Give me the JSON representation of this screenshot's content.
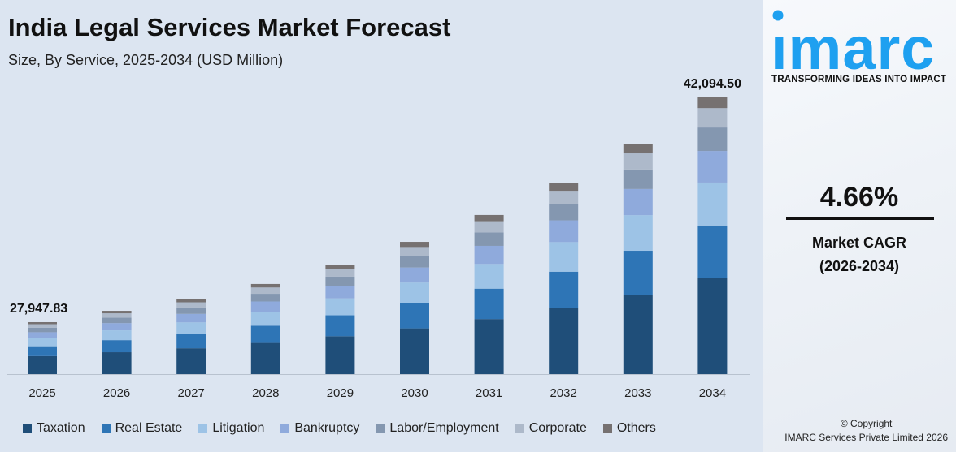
{
  "header": {
    "title": "India Legal Services Market Forecast",
    "subtitle": "Size, By Service, 2025-2034 (USD Million)"
  },
  "side": {
    "logo_text": "imarc",
    "tagline": "TRANSFORMING IDEAS INTO IMPACT",
    "cagr_value": "4.66%",
    "cagr_label": "Market CAGR",
    "cagr_period": "(2026-2034)",
    "copyright": "© Copyright",
    "copyright_owner": "IMARC Services Private Limited 2026"
  },
  "chart_data": {
    "type": "bar",
    "stacked": true,
    "title": "India Legal Services Market Forecast",
    "subtitle": "Size, By Service, 2025-2034 (USD Million)",
    "categories": [
      "2025",
      "2026",
      "2027",
      "2028",
      "2029",
      "2030",
      "2031",
      "2032",
      "2033",
      "2034"
    ],
    "totals": [
      27947.83,
      28660,
      29380,
      30350,
      31570,
      33000,
      34690,
      36680,
      39130,
      42094.5
    ],
    "total_labels": [
      "27,947.83",
      "",
      "",
      "",
      "",
      "",
      "",
      "",
      "",
      "42,094.50"
    ],
    "ylim": [
      24680,
      42600
    ],
    "grid": false,
    "legend": "bottom",
    "series": [
      {
        "name": "Taxation",
        "share": 34.6,
        "color": "#1f4e79"
      },
      {
        "name": "Real Estate",
        "share": 19.1,
        "color": "#2e75b6"
      },
      {
        "name": "Litigation",
        "share": 15.5,
        "color": "#9dc3e6"
      },
      {
        "name": "Bankruptcy",
        "share": 11.4,
        "color": "#8faadc"
      },
      {
        "name": "Labor/Employment",
        "share": 8.5,
        "color": "#8497b0"
      },
      {
        "name": "Corporate",
        "share": 7.0,
        "color": "#adb9ca"
      },
      {
        "name": "Others",
        "share": 3.9,
        "color": "#767171"
      }
    ]
  }
}
